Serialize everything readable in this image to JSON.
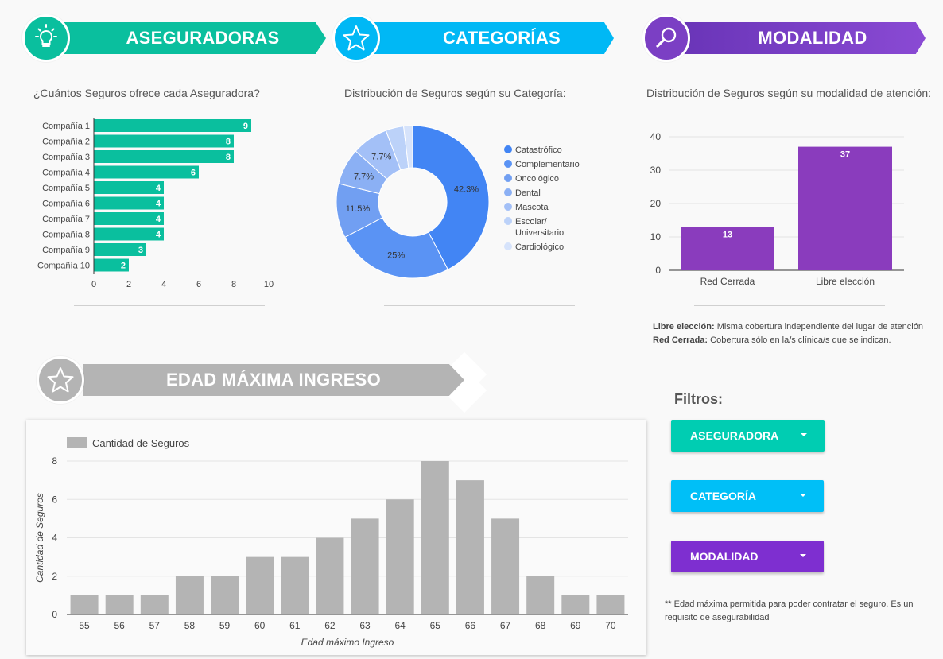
{
  "banners": {
    "aseguradoras": {
      "title": "ASEGURADORAS",
      "color": "#0abf9e",
      "icon": "lightbulb-icon"
    },
    "categorias": {
      "title": "CATEGORÍAS",
      "color": "#00b8f5",
      "icon": "star-icon"
    },
    "modalidad": {
      "title": "MODALIDAD",
      "color": "#7b3fc4",
      "icon": "search-icon"
    },
    "edad": {
      "title": "EDAD MÁXIMA INGRESO",
      "color": "#b4b4b4",
      "icon": "star-icon"
    }
  },
  "subtitles": {
    "aseguradoras": "¿Cuántos Seguros ofrece cada Aseguradora?",
    "categorias": "Distribución de Seguros según su Categoría:",
    "modalidad": "Distribución de Seguros según su modalidad de atención:"
  },
  "modalidad_notes": {
    "libre_label": "Libre elección:",
    "libre_text": "Misma cobertura independiente del lugar de atención",
    "cerrada_label": "Red Cerrada:",
    "cerrada_text": "Cobertura sólo en la/s clínica/s que se indican."
  },
  "filters": {
    "title": "Filtros:",
    "aseguradora": {
      "label": "ASEGURADORA",
      "color": "#00cdb2"
    },
    "categoria": {
      "label": "CATEGORÍA",
      "color": "#00bff7"
    },
    "modalidad": {
      "label": "MODALIDAD",
      "color": "#7e2fd0"
    }
  },
  "footnote": "** Edad máxima permitida para poder contratar el seguro. Es un requisito de asegurabilidad",
  "chart_data": [
    {
      "id": "aseguradoras",
      "type": "bar",
      "orientation": "horizontal",
      "categories": [
        "Compañía 1",
        "Compañía 2",
        "Compañía 3",
        "Compañía 4",
        "Compañía 5",
        "Compañía 6",
        "Compañía 7",
        "Compañía 8",
        "Compañía 9",
        "Compañía 10"
      ],
      "values": [
        9,
        8,
        8,
        6,
        4,
        4,
        4,
        4,
        3,
        2
      ],
      "xlim": [
        0,
        10
      ],
      "xticks": [
        0,
        2,
        4,
        6,
        8,
        10
      ],
      "color": "#0abf9e"
    },
    {
      "id": "categorias",
      "type": "pie",
      "donut": true,
      "labels": [
        "Catastrófico",
        "Complementario",
        "Oncológico",
        "Dental",
        "Mascota",
        "Escolar/ Universitario",
        "Cardiológico"
      ],
      "values": [
        42.3,
        25,
        11.5,
        7.7,
        7.7,
        3.8,
        1.9
      ],
      "value_labels": [
        "42.3%",
        "25%",
        "11.5%",
        "7.7%",
        "7.7%",
        "",
        ""
      ],
      "colors": [
        "#4285f4",
        "#5a93f4",
        "#719ff2",
        "#8bb0f4",
        "#a3c0f7",
        "#bcd2f9",
        "#d6e3fb"
      ]
    },
    {
      "id": "modalidad",
      "type": "bar",
      "categories": [
        "Red Cerrada",
        "Libre elección"
      ],
      "values": [
        13,
        37
      ],
      "ylim": [
        0,
        40
      ],
      "yticks": [
        0,
        10,
        20,
        30,
        40
      ],
      "color": "#8a3cbd"
    },
    {
      "id": "edad",
      "type": "bar",
      "legend": "Cantidad de Seguros",
      "categories": [
        "55",
        "56",
        "57",
        "58",
        "59",
        "60",
        "61",
        "62",
        "63",
        "64",
        "65",
        "66",
        "67",
        "68",
        "69",
        "70"
      ],
      "values": [
        1,
        1,
        1,
        2,
        2,
        3,
        3,
        4,
        5,
        6,
        8,
        7,
        5,
        2,
        1,
        1
      ],
      "ylim": [
        0,
        8
      ],
      "yticks": [
        0,
        2,
        4,
        6,
        8
      ],
      "xlabel": "Edad máximo Ingreso",
      "ylabel": "Cantidad de Seguros",
      "color": "#b4b4b4"
    }
  ]
}
